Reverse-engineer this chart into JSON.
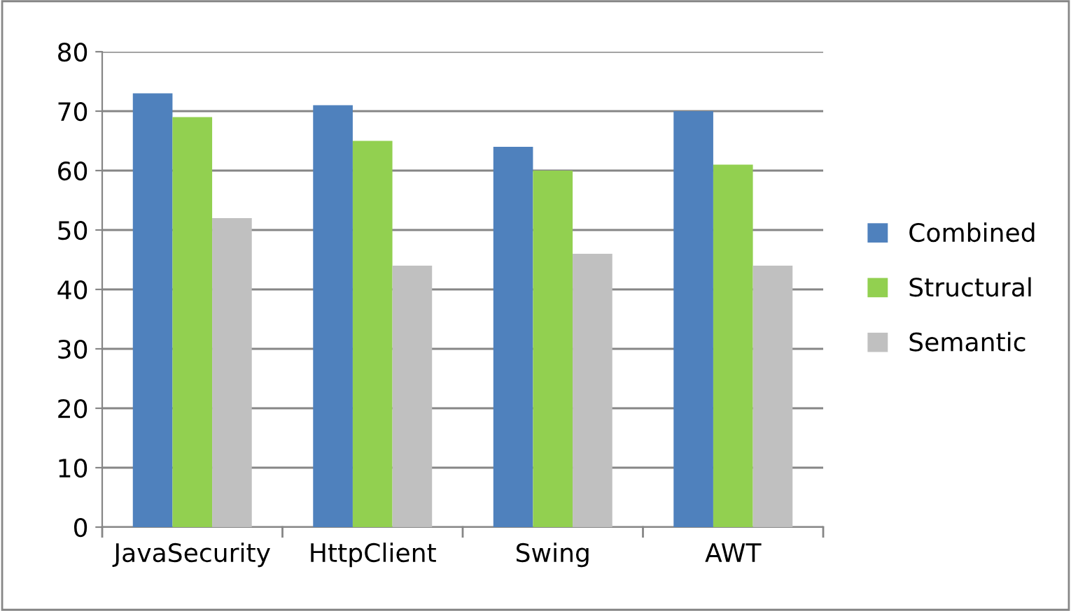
{
  "chart_data": {
    "type": "bar",
    "categories": [
      "JavaSecurity",
      "HttpClient",
      "Swing",
      "AWT"
    ],
    "series": [
      {
        "name": "Combined",
        "color": "#4f81bd",
        "values": [
          73,
          71,
          64,
          70
        ]
      },
      {
        "name": "Structural",
        "color": "#92d050",
        "values": [
          69,
          65,
          60,
          61
        ]
      },
      {
        "name": "Semantic",
        "color": "#c0c0c0",
        "values": [
          52,
          44,
          46,
          44
        ]
      }
    ],
    "ylim": [
      0,
      80
    ],
    "yticks": [
      0,
      10,
      20,
      30,
      40,
      50,
      60,
      70,
      80
    ],
    "grid": "y",
    "legend": "right"
  }
}
